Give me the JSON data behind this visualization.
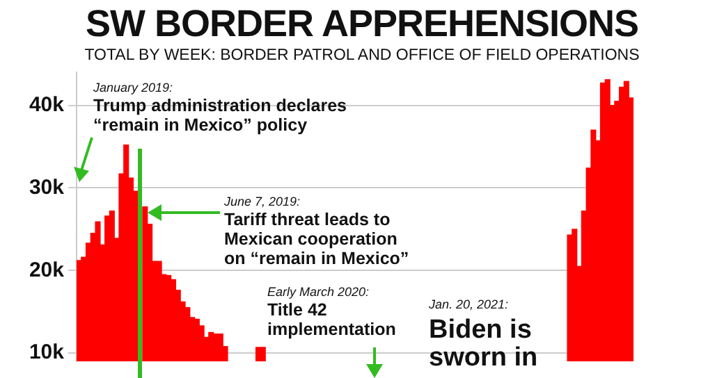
{
  "chart_data": {
    "type": "bar",
    "title": "SW BORDER APPREHENSIONS",
    "subtitle": "TOTAL BY WEEK: BORDER PATROL AND OFFICE OF FIELD OPERATIONS",
    "categories": [
      null,
      null,
      null,
      null,
      null,
      null,
      null,
      null,
      null,
      null,
      null,
      null,
      null,
      null,
      null,
      null,
      null,
      null,
      null,
      null,
      null,
      null,
      null,
      null,
      null,
      null,
      null,
      null,
      null,
      null,
      null,
      null,
      null,
      null,
      null,
      null,
      null,
      null,
      null,
      null,
      null,
      null,
      null,
      null,
      null,
      null,
      null,
      null,
      null,
      null,
      null,
      null,
      null,
      null,
      null,
      null,
      null,
      null,
      null,
      null,
      null,
      null,
      null,
      null,
      null,
      null,
      null,
      null,
      null,
      null,
      null,
      null,
      null,
      null,
      null,
      null,
      null,
      null,
      null,
      null,
      null,
      null,
      null,
      null,
      null,
      null,
      null,
      null,
      null,
      null,
      null,
      null,
      null,
      null,
      null,
      null,
      null,
      null,
      null,
      null,
      null,
      null,
      null,
      null,
      null,
      null,
      null,
      null,
      null,
      null,
      null,
      null,
      null,
      null,
      null,
      null,
      null,
      null
    ],
    "values": [
      21200,
      21600,
      23300,
      24500,
      25900,
      23100,
      26600,
      27200,
      23900,
      31700,
      35200,
      31200,
      29600,
      null,
      27700,
      25600,
      21100,
      21100,
      19500,
      19400,
      18900,
      17600,
      16200,
      15500,
      14300,
      14100,
      13300,
      11900,
      12500,
      12300,
      12300,
      10800,
      null,
      null,
      null,
      null,
      null,
      null,
      10700,
      10700,
      null,
      null,
      null,
      null,
      null,
      null,
      null,
      null,
      null,
      null,
      null,
      null,
      null,
      null,
      null,
      null,
      null,
      null,
      null,
      null,
      null,
      null,
      null,
      null,
      null,
      null,
      null,
      null,
      null,
      null,
      null,
      null,
      null,
      null,
      null,
      null,
      null,
      null,
      null,
      null,
      null,
      null,
      null,
      null,
      null,
      null,
      null,
      null,
      null,
      null,
      null,
      null,
      null,
      null,
      null,
      null,
      null,
      null,
      null,
      null,
      null,
      null,
      null,
      null,
      24300,
      25000,
      20500,
      27200,
      32400,
      37000,
      35700,
      42700,
      43100,
      40000,
      40500,
      42200,
      42900,
      40900
    ],
    "color": "#ff0000",
    "ylim": [
      9000,
      44000
    ],
    "yticks": [
      {
        "value": 10000,
        "label": "10k"
      },
      {
        "value": 20000,
        "label": "20k"
      },
      {
        "value": 30000,
        "label": "30k"
      },
      {
        "value": 40000,
        "label": "40k"
      }
    ],
    "grid": "y",
    "tick_labels": "y",
    "annotations": [
      "January 2019:",
      "Trump administration declares “remain in Mexico” policy",
      "June 7, 2019:",
      "Tariff threat leads to Mexican cooperation on “remain in Mexico”",
      "Early March 2020:",
      "Title 42 implementation",
      "Jan. 20, 2021:",
      "Biden is sworn in"
    ]
  }
}
